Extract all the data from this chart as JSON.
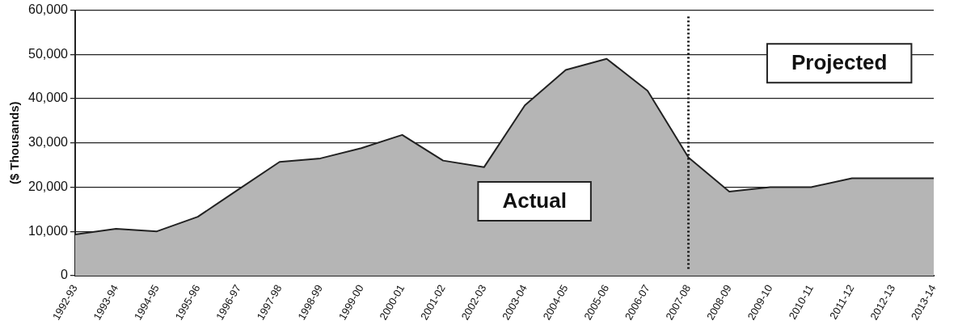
{
  "chart_data": {
    "type": "area",
    "ylabel": "($ Thousands)",
    "categories": [
      "1992-93",
      "1993-94",
      "1994-95",
      "1995-96",
      "1996-97",
      "1997-98",
      "1998-99",
      "1999-00",
      "2000-01",
      "2001-02",
      "2002-03",
      "2003-04",
      "2004-05",
      "2005-06",
      "2006-07",
      "2007-08",
      "2008-09",
      "2009-10",
      "2010-11",
      "2011-12",
      "2012-13",
      "2013-14"
    ],
    "series": [
      {
        "color": "#b5b5b5",
        "values": [
          9300,
          10600,
          10000,
          13300,
          19500,
          25700,
          26500,
          28800,
          31800,
          26000,
          24500,
          38500,
          46500,
          49000,
          41800,
          26700,
          19000,
          20000,
          20000,
          22000,
          22000,
          22000
        ]
      }
    ],
    "ylim": [
      0,
      60000
    ],
    "yticks": [
      {
        "value": 0,
        "label": "0"
      },
      {
        "value": 10000,
        "label": "10,000"
      },
      {
        "value": 20000,
        "label": "20,000"
      },
      {
        "value": 30000,
        "label": "30,000"
      },
      {
        "value": 40000,
        "label": "40,000"
      },
      {
        "value": 50000,
        "label": "50,000"
      },
      {
        "value": 60000,
        "label": "60,000"
      }
    ],
    "grid": "y",
    "legend": false,
    "ref_lines": [
      {
        "axis": "x",
        "value": "2007-08",
        "line_style": "dotted",
        "color": "#111111"
      }
    ],
    "annotations": [
      "Actual",
      "Projected"
    ]
  }
}
